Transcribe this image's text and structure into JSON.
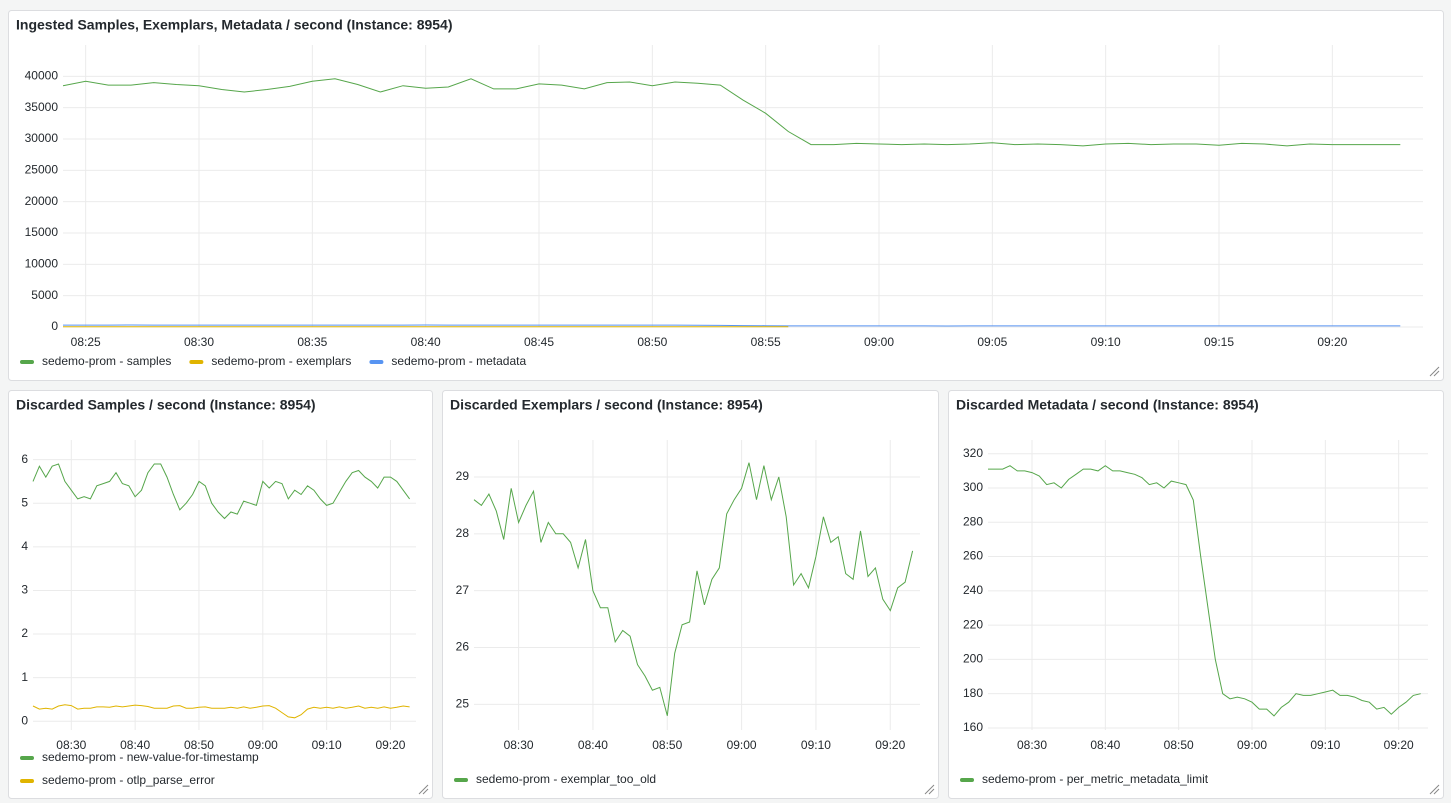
{
  "chart_data": [
    {
      "type": "line",
      "title": "Ingested Samples, Exemplars, Metadata / second (Instance: 8954)",
      "legend": "bottom",
      "grid": true,
      "x": [
        "08:24",
        "08:25",
        "08:26",
        "08:27",
        "08:28",
        "08:29",
        "08:30",
        "08:31",
        "08:32",
        "08:33",
        "08:34",
        "08:35",
        "08:36",
        "08:37",
        "08:38",
        "08:39",
        "08:40",
        "08:41",
        "08:42",
        "08:43",
        "08:44",
        "08:45",
        "08:46",
        "08:47",
        "08:48",
        "08:49",
        "08:50",
        "08:51",
        "08:52",
        "08:53",
        "08:54",
        "08:55",
        "08:56",
        "08:57",
        "08:58",
        "08:59",
        "09:00",
        "09:01",
        "09:02",
        "09:03",
        "09:04",
        "09:05",
        "09:06",
        "09:07",
        "09:08",
        "09:09",
        "09:10",
        "09:11",
        "09:12",
        "09:13",
        "09:14",
        "09:15",
        "09:16",
        "09:17",
        "09:18",
        "09:19",
        "09:20",
        "09:21",
        "09:22",
        "09:23"
      ],
      "xlim": [
        "08:24",
        "09:24"
      ],
      "xticks": [
        "08:25",
        "08:30",
        "08:35",
        "08:40",
        "08:45",
        "08:50",
        "08:55",
        "09:00",
        "09:05",
        "09:10",
        "09:15",
        "09:20"
      ],
      "ylim": [
        0,
        45000
      ],
      "yticks": [
        0,
        5000,
        10000,
        15000,
        20000,
        25000,
        30000,
        35000,
        40000
      ],
      "series": [
        {
          "name": "sedemo-prom - samples",
          "color": "#56a64b",
          "values": [
            38500,
            39200,
            38600,
            38600,
            39000,
            38700,
            38500,
            37900,
            37500,
            37900,
            38400,
            39200,
            39600,
            38700,
            37500,
            38500,
            38100,
            38300,
            39600,
            38000,
            38000,
            38800,
            38600,
            38000,
            39000,
            39100,
            38500,
            39100,
            38900,
            38600,
            36200,
            34100,
            31200,
            29100,
            29100,
            29300,
            29200,
            29100,
            29200,
            29100,
            29200,
            29400,
            29100,
            29200,
            29100,
            28900,
            29200,
            29300,
            29100,
            29200,
            29200,
            29000,
            29300,
            29200,
            28900,
            29200,
            29100,
            29100,
            29100,
            29100
          ]
        },
        {
          "name": "sedemo-prom - exemplars",
          "color": "#e0b400",
          "values": [
            28.6,
            28.5,
            28.7,
            28.4,
            27.9,
            28.8,
            28.2,
            28.5,
            28.75,
            27.85,
            28.2,
            28.0,
            28.0,
            27.85,
            27.4,
            27.9,
            27.0,
            26.7,
            26.7,
            26.1,
            26.3,
            26.2,
            25.7,
            25.5,
            25.25,
            25.3,
            24.8,
            25.9,
            26.4,
            26.45,
            27.35,
            26.75,
            27.2,
            null,
            null,
            null,
            null,
            null,
            null,
            null,
            null,
            null,
            null,
            null,
            null,
            null,
            null,
            null,
            null,
            null,
            null,
            null,
            null,
            null,
            null,
            null,
            null,
            null,
            null,
            null
          ]
        },
        {
          "name": "sedemo-prom - metadata",
          "color": "#5794f2",
          "values": [
            311,
            311,
            311,
            313,
            310,
            310,
            309,
            307,
            302,
            303,
            300,
            305,
            308,
            311,
            311,
            310,
            313,
            310,
            310,
            309,
            308,
            306,
            302,
            303,
            300,
            304,
            303,
            302,
            293,
            260,
            230,
            200,
            180,
            177,
            178,
            177,
            175,
            171,
            171,
            167,
            172,
            175,
            180,
            179,
            179,
            180,
            181,
            182,
            179,
            179,
            178,
            176,
            175,
            171,
            172,
            168,
            172,
            175,
            179,
            180
          ]
        }
      ]
    },
    {
      "type": "line",
      "title": "Discarded Samples / second (Instance: 8954)",
      "legend": "bottom",
      "grid": true,
      "x": [
        "08:24",
        "08:25",
        "08:26",
        "08:27",
        "08:28",
        "08:29",
        "08:30",
        "08:31",
        "08:32",
        "08:33",
        "08:34",
        "08:35",
        "08:36",
        "08:37",
        "08:38",
        "08:39",
        "08:40",
        "08:41",
        "08:42",
        "08:43",
        "08:44",
        "08:45",
        "08:46",
        "08:47",
        "08:48",
        "08:49",
        "08:50",
        "08:51",
        "08:52",
        "08:53",
        "08:54",
        "08:55",
        "08:56",
        "08:57",
        "08:58",
        "08:59",
        "09:00",
        "09:01",
        "09:02",
        "09:03",
        "09:04",
        "09:05",
        "09:06",
        "09:07",
        "09:08",
        "09:09",
        "09:10",
        "09:11",
        "09:12",
        "09:13",
        "09:14",
        "09:15",
        "09:16",
        "09:17",
        "09:18",
        "09:19",
        "09:20",
        "09:21",
        "09:22",
        "09:23"
      ],
      "xlim": [
        "08:24",
        "09:24"
      ],
      "xticks": [
        "08:30",
        "08:40",
        "08:50",
        "09:00",
        "09:10",
        "09:20"
      ],
      "ylim": [
        -0.2,
        6.45
      ],
      "yticks": [
        0,
        1,
        2,
        3,
        4,
        5,
        6
      ],
      "series": [
        {
          "name": "sedemo-prom - new-value-for-timestamp",
          "color": "#56a64b",
          "values": [
            5.5,
            5.85,
            5.6,
            5.85,
            5.9,
            5.5,
            5.3,
            5.1,
            5.15,
            5.1,
            5.4,
            5.45,
            5.5,
            5.7,
            5.45,
            5.4,
            5.15,
            5.3,
            5.7,
            5.9,
            5.9,
            5.6,
            5.2,
            4.85,
            5.0,
            5.2,
            5.5,
            5.4,
            5.0,
            4.8,
            4.65,
            4.8,
            4.75,
            5.05,
            5.0,
            4.95,
            5.5,
            5.35,
            5.5,
            5.45,
            5.1,
            5.3,
            5.2,
            5.4,
            5.3,
            5.1,
            4.95,
            5.0,
            5.25,
            5.5,
            5.7,
            5.75,
            5.6,
            5.5,
            5.35,
            5.6,
            5.6,
            5.5,
            5.3,
            5.1
          ]
        },
        {
          "name": "sedemo-prom - otlp_parse_error",
          "color": "#e0b400",
          "values": [
            0.35,
            0.28,
            0.3,
            0.28,
            0.35,
            0.38,
            0.36,
            0.28,
            0.3,
            0.3,
            0.33,
            0.33,
            0.32,
            0.35,
            0.33,
            0.35,
            0.37,
            0.36,
            0.34,
            0.3,
            0.3,
            0.3,
            0.35,
            0.36,
            0.3,
            0.3,
            0.32,
            0.33,
            0.3,
            0.3,
            0.3,
            0.32,
            0.3,
            0.33,
            0.3,
            0.32,
            0.35,
            0.36,
            0.3,
            0.2,
            0.1,
            0.08,
            0.15,
            0.28,
            0.32,
            0.3,
            0.32,
            0.3,
            0.33,
            0.3,
            0.32,
            0.35,
            0.3,
            0.32,
            0.3,
            0.33,
            0.3,
            0.32,
            0.35,
            0.33
          ]
        }
      ]
    },
    {
      "type": "line",
      "title": "Discarded Exemplars / second (Instance: 8954)",
      "legend": "bottom",
      "grid": true,
      "x": [
        "08:24",
        "08:25",
        "08:26",
        "08:27",
        "08:28",
        "08:29",
        "08:30",
        "08:31",
        "08:32",
        "08:33",
        "08:34",
        "08:35",
        "08:36",
        "08:37",
        "08:38",
        "08:39",
        "08:40",
        "08:41",
        "08:42",
        "08:43",
        "08:44",
        "08:45",
        "08:46",
        "08:47",
        "08:48",
        "08:49",
        "08:50",
        "08:51",
        "08:52",
        "08:53",
        "08:54",
        "08:55",
        "08:56",
        "08:57",
        "08:58",
        "08:59",
        "09:00",
        "09:01",
        "09:02",
        "09:03",
        "09:04",
        "09:05",
        "09:06",
        "09:07",
        "09:08",
        "09:09",
        "09:10",
        "09:11",
        "09:12",
        "09:13",
        "09:14",
        "09:15",
        "09:16",
        "09:17",
        "09:18",
        "09:19",
        "09:20",
        "09:21",
        "09:22",
        "09:23"
      ],
      "xlim": [
        "08:24",
        "09:24"
      ],
      "xticks": [
        "08:30",
        "08:40",
        "08:50",
        "09:00",
        "09:10",
        "09:20"
      ],
      "ylim": [
        24.55,
        29.65
      ],
      "yticks": [
        25,
        26,
        27,
        28,
        29
      ],
      "series": [
        {
          "name": "sedemo-prom - exemplar_too_old",
          "color": "#56a64b",
          "values": [
            28.6,
            28.5,
            28.7,
            28.4,
            27.9,
            28.8,
            28.2,
            28.5,
            28.75,
            27.85,
            28.2,
            28.0,
            28.0,
            27.85,
            27.4,
            27.9,
            27.0,
            26.7,
            26.7,
            26.1,
            26.3,
            26.2,
            25.7,
            25.5,
            25.25,
            25.3,
            24.8,
            25.9,
            26.4,
            26.45,
            27.35,
            26.75,
            27.2,
            27.4,
            28.35,
            28.6,
            28.8,
            29.25,
            28.6,
            29.2,
            28.6,
            29.0,
            28.3,
            27.1,
            27.3,
            27.05,
            27.6,
            28.3,
            27.85,
            27.95,
            27.3,
            27.2,
            28.05,
            27.25,
            27.4,
            26.85,
            26.65,
            27.05,
            27.15,
            27.7
          ]
        }
      ]
    },
    {
      "type": "line",
      "title": "Discarded Metadata / second (Instance: 8954)",
      "legend": "bottom",
      "grid": true,
      "x": [
        "08:24",
        "08:25",
        "08:26",
        "08:27",
        "08:28",
        "08:29",
        "08:30",
        "08:31",
        "08:32",
        "08:33",
        "08:34",
        "08:35",
        "08:36",
        "08:37",
        "08:38",
        "08:39",
        "08:40",
        "08:41",
        "08:42",
        "08:43",
        "08:44",
        "08:45",
        "08:46",
        "08:47",
        "08:48",
        "08:49",
        "08:50",
        "08:51",
        "08:52",
        "08:53",
        "08:54",
        "08:55",
        "08:56",
        "08:57",
        "08:58",
        "08:59",
        "09:00",
        "09:01",
        "09:02",
        "09:03",
        "09:04",
        "09:05",
        "09:06",
        "09:07",
        "09:08",
        "09:09",
        "09:10",
        "09:11",
        "09:12",
        "09:13",
        "09:14",
        "09:15",
        "09:16",
        "09:17",
        "09:18",
        "09:19",
        "09:20",
        "09:21",
        "09:22",
        "09:23"
      ],
      "xlim": [
        "08:24",
        "09:24"
      ],
      "xticks": [
        "08:30",
        "08:40",
        "08:50",
        "09:00",
        "09:10",
        "09:20"
      ],
      "ylim": [
        158.8,
        328
      ],
      "yticks": [
        160,
        180,
        200,
        220,
        240,
        260,
        280,
        300,
        320
      ],
      "series": [
        {
          "name": "sedemo-prom - per_metric_metadata_limit",
          "color": "#56a64b",
          "values": [
            311,
            311,
            311,
            313,
            310,
            310,
            309,
            307,
            302,
            303,
            300,
            305,
            308,
            311,
            311,
            310,
            313,
            310,
            310,
            309,
            308,
            306,
            302,
            303,
            300,
            304,
            303,
            302,
            293,
            260,
            230,
            200,
            180,
            177,
            178,
            177,
            175,
            171,
            171,
            167,
            172,
            175,
            180,
            179,
            179,
            180,
            181,
            182,
            179,
            179,
            178,
            176,
            175,
            171,
            172,
            168,
            172,
            175,
            179,
            180
          ]
        }
      ]
    }
  ]
}
